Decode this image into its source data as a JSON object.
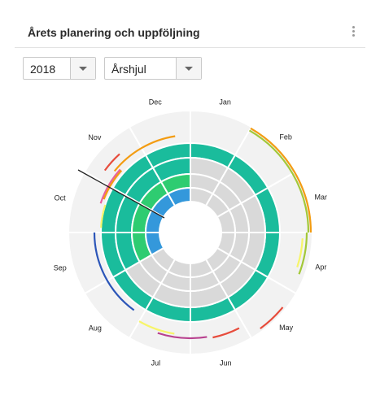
{
  "header": {
    "title": "Årets planering och uppföljning"
  },
  "filters": {
    "year": {
      "value": "2018"
    },
    "view": {
      "value": "Årshjul"
    }
  },
  "wheel": {
    "months": [
      "Jan",
      "Feb",
      "Mar",
      "Apr",
      "May",
      "Jun",
      "Jul",
      "Aug",
      "Sep",
      "Oct",
      "Nov",
      "Dec"
    ],
    "colors": {
      "background": "#f2f2f2",
      "teal": "#1abc9c",
      "green": "#2ecc71",
      "blue": "#3498db",
      "empty": "#d9d9d9",
      "orange": "#f39c12",
      "yellow_green": "#a3c839",
      "yellow": "#f7f56a",
      "red": "#e74c3c",
      "pink": "#e8609d",
      "magenta": "#b8418f",
      "navy": "#2b55b8"
    }
  }
}
